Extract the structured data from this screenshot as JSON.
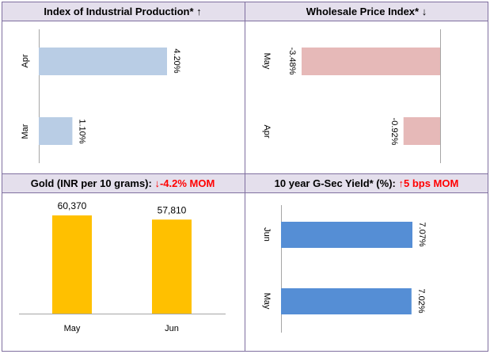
{
  "colors": {
    "header_bg": "#e4dfec",
    "border": "#7f6f9f",
    "iip_bar": "#b9cde5",
    "wpi_bar": "#e6b9b8",
    "gold_bar": "#ffc000",
    "gsec_bar": "#558ed5",
    "axis": "#a6a6a6",
    "up_red": "#ff0000",
    "text": "#000000"
  },
  "panels": {
    "iip": {
      "title": "Index of Industrial Production*",
      "arrow": "↑"
    },
    "wpi": {
      "title": "Wholesale Price Index*",
      "arrow": "↓"
    },
    "gold": {
      "title": "Gold (INR per 10 grams): ",
      "change": "↓-4.2% MOM"
    },
    "gsec": {
      "title": "10 year G-Sec Yield* (%):",
      "change": "↑5 bps MOM"
    }
  },
  "chart_data": [
    {
      "id": "iip",
      "type": "bar",
      "orientation": "horizontal",
      "categories": [
        "Apr",
        "Mar"
      ],
      "values": [
        4.2,
        1.1
      ],
      "data_labels": [
        "4.20%",
        "1.10%"
      ],
      "xlim": [
        0,
        4.2
      ]
    },
    {
      "id": "wpi",
      "type": "bar",
      "orientation": "horizontal",
      "categories": [
        "May",
        "Apr"
      ],
      "values": [
        -3.48,
        -0.92
      ],
      "data_labels": [
        "-3.48%",
        "-0.92%"
      ],
      "xlim": [
        -3.48,
        0
      ]
    },
    {
      "id": "gold",
      "type": "bar",
      "orientation": "vertical",
      "categories": [
        "May",
        "Jun"
      ],
      "values": [
        60370,
        57810
      ],
      "data_labels": [
        "60,370",
        "57,810"
      ],
      "ylim": [
        0,
        60370
      ]
    },
    {
      "id": "gsec",
      "type": "bar",
      "orientation": "horizontal",
      "categories": [
        "Jun",
        "May"
      ],
      "values": [
        7.07,
        7.02
      ],
      "data_labels": [
        "7.07%",
        "7.02%"
      ],
      "xlim": [
        0,
        7.07
      ]
    }
  ]
}
